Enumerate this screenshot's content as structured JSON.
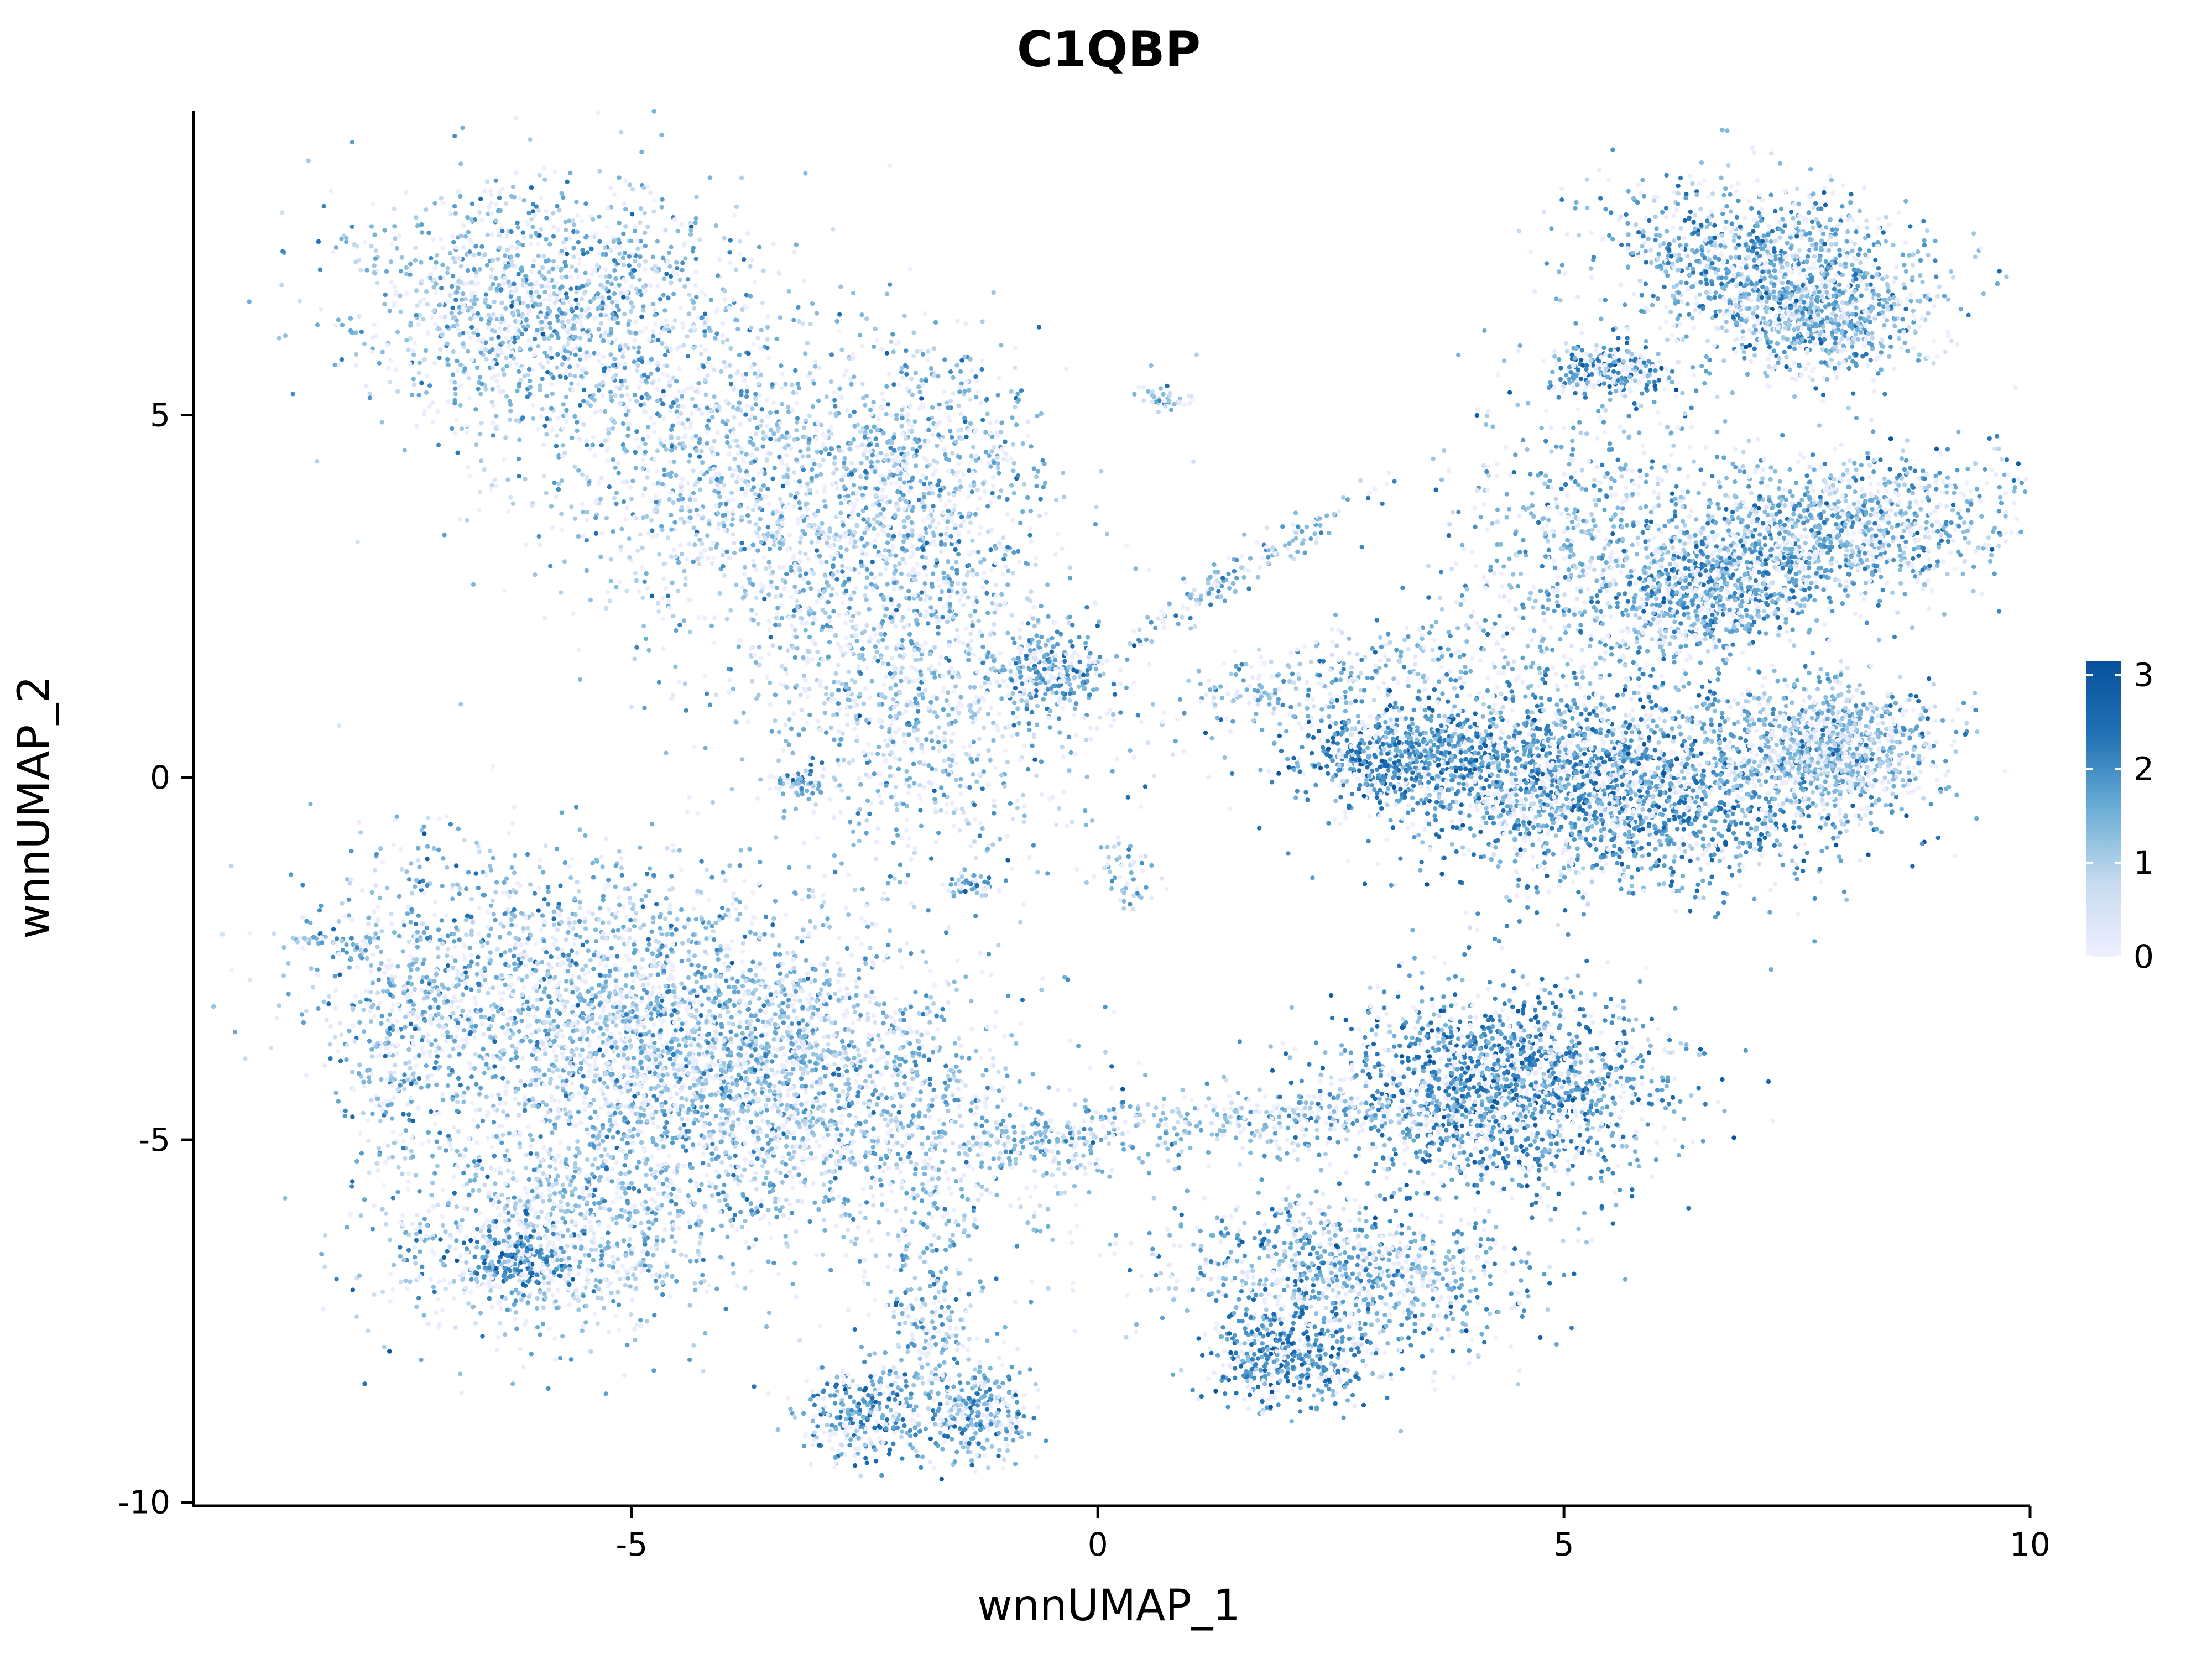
{
  "chart_data": {
    "type": "scatter",
    "title": "C1QBP",
    "xlabel": "wnnUMAP_1",
    "ylabel": "wnnUMAP_2",
    "xlim": [
      -9.7,
      10
    ],
    "ylim": [
      -10.05,
      9.2
    ],
    "x_ticks": [
      -5,
      0,
      5,
      10
    ],
    "x_tick_labels": [
      "-5",
      "0",
      "5",
      "10"
    ],
    "y_ticks": [
      -10,
      -5,
      0,
      5
    ],
    "y_tick_labels": [
      "-10",
      "-5",
      "0",
      "5"
    ],
    "grid": false,
    "legend": {
      "placement": "right",
      "type": "colorbar",
      "range": [
        0,
        3.15
      ],
      "ticks": [
        0,
        1,
        2,
        3
      ],
      "tick_labels": [
        "0",
        "1",
        "2",
        "3"
      ],
      "colors": [
        "#f0f0ff",
        "#c6dbef",
        "#6baed6",
        "#2171b5",
        "#08519c"
      ]
    },
    "point_size": "small",
    "clusters": [
      {
        "name": "top-left band",
        "cx": -5.8,
        "cy": 6.5,
        "sx": 1.1,
        "sy": 0.85,
        "angle": -10,
        "n": 1500,
        "mean": 1.3
      },
      {
        "name": "top-left mid",
        "cx": -3.4,
        "cy": 3.8,
        "sx": 1.35,
        "sy": 1.1,
        "angle": -20,
        "n": 1500,
        "mean": 1.25
      },
      {
        "name": "top-left lower",
        "cx": -2.0,
        "cy": 1.2,
        "sx": 0.95,
        "sy": 1.3,
        "angle": 10,
        "n": 1100,
        "mean": 1.2
      },
      {
        "name": "top-left right arm",
        "cx": -1.8,
        "cy": 4.4,
        "sx": 0.5,
        "sy": 0.9,
        "angle": 0,
        "n": 450,
        "mean": 1.4
      },
      {
        "name": "center junction",
        "cx": -0.5,
        "cy": 1.4,
        "sx": 0.3,
        "sy": 0.3,
        "angle": 0,
        "n": 250,
        "mean": 1.6
      },
      {
        "name": "left tail",
        "cx": -3.2,
        "cy": -0.1,
        "sx": 0.15,
        "sy": 0.12,
        "angle": 0,
        "n": 60,
        "mean": 1.5
      },
      {
        "name": "bottom tip",
        "cx": -1.4,
        "cy": -1.5,
        "sx": 0.12,
        "sy": 0.08,
        "angle": 0,
        "n": 40,
        "mean": 1.8
      },
      {
        "name": "small spot top",
        "cx": 0.7,
        "cy": 5.2,
        "sx": 0.15,
        "sy": 0.1,
        "angle": 0,
        "n": 40,
        "mean": 1.0
      },
      {
        "name": "thin streak",
        "cx": 1.5,
        "cy": 2.8,
        "sx": 1.0,
        "sy": 0.12,
        "angle": 40,
        "n": 160,
        "mean": 1.5
      },
      {
        "name": "small center low",
        "cx": 0.3,
        "cy": -1.3,
        "sx": 0.15,
        "sy": 0.25,
        "angle": 0,
        "n": 50,
        "mean": 1.2
      },
      {
        "name": "top-right cap",
        "cx": 7.2,
        "cy": 7.0,
        "sx": 0.9,
        "sy": 0.55,
        "angle": -15,
        "n": 1200,
        "mean": 1.6
      },
      {
        "name": "top-right lower",
        "cx": 7.8,
        "cy": 6.2,
        "sx": 0.5,
        "sy": 0.35,
        "angle": 0,
        "n": 400,
        "mean": 1.5
      },
      {
        "name": "top-right small",
        "cx": 5.5,
        "cy": 5.6,
        "sx": 0.35,
        "sy": 0.18,
        "angle": 0,
        "n": 250,
        "mean": 1.9
      },
      {
        "name": "right mid band",
        "cx": 8.0,
        "cy": 3.4,
        "sx": 0.95,
        "sy": 0.5,
        "angle": 10,
        "n": 1200,
        "mean": 1.5
      },
      {
        "name": "right mid small",
        "cx": 6.6,
        "cy": 2.5,
        "sx": 0.45,
        "sy": 0.4,
        "angle": 0,
        "n": 500,
        "mean": 1.8
      },
      {
        "name": "right vertical",
        "cx": 5.5,
        "cy": 3.0,
        "sx": 0.9,
        "sy": 1.2,
        "angle": 0,
        "n": 900,
        "mean": 1.4
      },
      {
        "name": "right large blob",
        "cx": 5.3,
        "cy": -0.1,
        "sx": 1.25,
        "sy": 0.65,
        "angle": -8,
        "n": 2500,
        "mean": 1.8
      },
      {
        "name": "right left lobe",
        "cx": 3.2,
        "cy": 0.3,
        "sx": 0.5,
        "sy": 0.3,
        "angle": 0,
        "n": 500,
        "mean": 2.0
      },
      {
        "name": "right far blob",
        "cx": 7.9,
        "cy": 0.4,
        "sx": 0.55,
        "sy": 0.45,
        "angle": 0,
        "n": 1000,
        "mean": 1.3
      },
      {
        "name": "right streak left",
        "cx": 2.5,
        "cy": 1.4,
        "sx": 1.2,
        "sy": 0.3,
        "angle": 15,
        "n": 300,
        "mean": 1.3
      },
      {
        "name": "bottom-left main",
        "cx": -4.3,
        "cy": -3.8,
        "sx": 1.9,
        "sy": 1.05,
        "angle": -25,
        "n": 4200,
        "mean": 1.3
      },
      {
        "name": "bottom-left lower",
        "cx": -5.8,
        "cy": -6.2,
        "sx": 0.9,
        "sy": 0.8,
        "angle": 0,
        "n": 1000,
        "mean": 1.3
      },
      {
        "name": "bottom-left edge",
        "cx": -7.4,
        "cy": -3.5,
        "sx": 0.35,
        "sy": 1.1,
        "angle": 0,
        "n": 350,
        "mean": 1.5
      },
      {
        "name": "bottom-left corner",
        "cx": -6.2,
        "cy": -6.7,
        "sx": 0.3,
        "sy": 0.2,
        "angle": 0,
        "n": 200,
        "mean": 2.0
      },
      {
        "name": "left spur",
        "cx": -8.3,
        "cy": -2.25,
        "sx": 0.25,
        "sy": 0.05,
        "angle": 0,
        "n": 35,
        "mean": 1.5
      },
      {
        "name": "bottom small left",
        "cx": -2.5,
        "cy": -8.8,
        "sx": 0.35,
        "sy": 0.35,
        "angle": 0,
        "n": 300,
        "mean": 1.8
      },
      {
        "name": "bottom small right",
        "cx": -1.3,
        "cy": -8.8,
        "sx": 0.3,
        "sy": 0.35,
        "angle": 0,
        "n": 300,
        "mean": 1.6
      },
      {
        "name": "bottom thin stalk",
        "cx": -1.8,
        "cy": -7.6,
        "sx": 0.25,
        "sy": 0.7,
        "angle": 0,
        "n": 200,
        "mean": 1.4
      },
      {
        "name": "bottom-right top",
        "cx": 4.3,
        "cy": -4.3,
        "sx": 0.9,
        "sy": 0.7,
        "angle": 0,
        "n": 1700,
        "mean": 1.9
      },
      {
        "name": "bottom-right streak",
        "cx": 1.8,
        "cy": -4.7,
        "sx": 1.3,
        "sy": 0.2,
        "angle": 5,
        "n": 350,
        "mean": 1.3
      },
      {
        "name": "bottom-right mid",
        "cx": 2.7,
        "cy": -6.8,
        "sx": 1.0,
        "sy": 0.55,
        "angle": -10,
        "n": 900,
        "mean": 1.6
      },
      {
        "name": "bottom-right low",
        "cx": 2.1,
        "cy": -8.0,
        "sx": 0.45,
        "sy": 0.35,
        "angle": 0,
        "n": 450,
        "mean": 2.0
      },
      {
        "name": "bridge",
        "cx": -0.6,
        "cy": -5.1,
        "sx": 0.55,
        "sy": 0.2,
        "angle": 0,
        "n": 150,
        "mean": 1.2
      }
    ]
  }
}
